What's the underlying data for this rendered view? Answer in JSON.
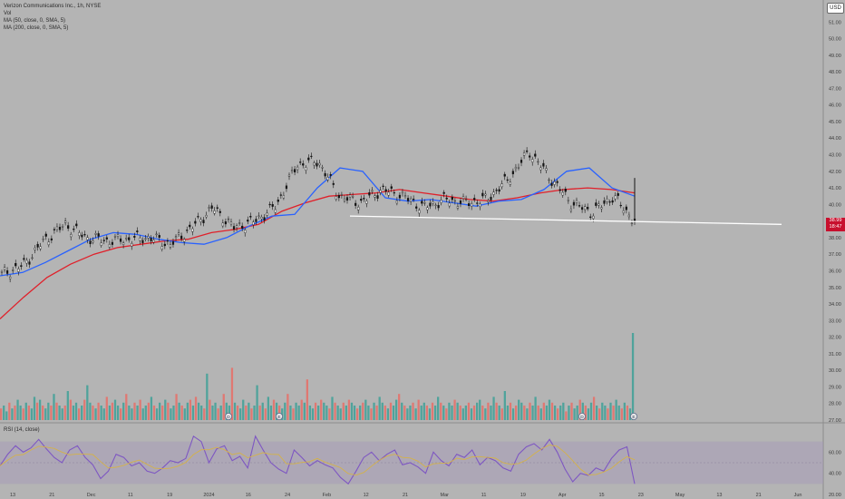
{
  "chart_data": [
    {
      "type": "candlestick",
      "title": "Verizon Communications Inc., 1h, NYSE",
      "currency": "USD",
      "last_price": "38.99",
      "countdown": "18:47",
      "ylim": [
        27,
        52
      ],
      "y_ticks": [
        "51.00",
        "50.00",
        "49.00",
        "48.00",
        "47.00",
        "46.00",
        "45.00",
        "44.00",
        "43.00",
        "42.00",
        "41.00",
        "40.00",
        "39.00",
        "38.00",
        "37.00",
        "36.00",
        "35.00",
        "34.00",
        "33.00",
        "32.00",
        "31.00",
        "30.00",
        "29.00",
        "28.00",
        "27.00"
      ],
      "x_ticks": [
        "13",
        "21",
        "Dec",
        "11",
        "19",
        "2024",
        "16",
        "24",
        "Feb",
        "12",
        "21",
        "Mar",
        "11",
        "19",
        "Apr",
        "15",
        "23",
        "May",
        "13",
        "21",
        "Jun"
      ],
      "series": [
        {
          "name": "MA (50, close, 0, SMA, 5)",
          "color": "#2962ff",
          "values": [
            35.7,
            35.9,
            36.5,
            37.2,
            37.9,
            38.3,
            38.2,
            37.9,
            37.7,
            37.6,
            38.0,
            38.7,
            39.3,
            39.4,
            41.0,
            42.2,
            42.0,
            40.4,
            40.2,
            40.3,
            40.1,
            39.9,
            40.2,
            40.3,
            40.9,
            42.0,
            42.2,
            41.0,
            40.5
          ]
        },
        {
          "name": "MA (200, close, 0, SMA, 5)",
          "color": "#e0202a",
          "values": [
            33.1,
            34.4,
            35.6,
            36.4,
            37.0,
            37.4,
            37.6,
            37.8,
            37.9,
            38.3,
            38.5,
            38.8,
            39.6,
            40.1,
            40.5,
            40.6,
            40.7,
            40.9,
            40.7,
            40.5,
            40.3,
            40.2,
            40.4,
            40.7,
            40.9,
            41.0,
            40.9,
            40.7
          ]
        },
        {
          "name": "Price close",
          "color": "#141414",
          "values": [
            35.8,
            36.3,
            37.8,
            38.8,
            38.0,
            37.8,
            37.9,
            38.0,
            37.6,
            38.6,
            39.8,
            38.6,
            39.0,
            39.9,
            42.4,
            42.6,
            40.5,
            40.1,
            40.9,
            40.5,
            39.8,
            40.3,
            40.1,
            40.3,
            41.5,
            43.2,
            41.6,
            40.1,
            39.5,
            40.5,
            38.99
          ]
        }
      ],
      "trendline": {
        "from": [
          10.5,
          39.3
        ],
        "to": [
          23.6,
          38.8
        ]
      }
    },
    {
      "type": "bar",
      "title": "Vol",
      "colors": {
        "up": "#4fa39b",
        "down": "#e07872"
      },
      "values": [
        4,
        5,
        3,
        6,
        4,
        5,
        7,
        5,
        4,
        6,
        5,
        4,
        8,
        6,
        7,
        5,
        4,
        6,
        5,
        9,
        6,
        5,
        4,
        5,
        10,
        7,
        5,
        6,
        4,
        5,
        7,
        12,
        6,
        5,
        4,
        6,
        5,
        4,
        8,
        5,
        6,
        7,
        5,
        4,
        6,
        9,
        5,
        4,
        6,
        5,
        7,
        4,
        5,
        6,
        8,
        5,
        4,
        6,
        5,
        7,
        6,
        4,
        5,
        9,
        6,
        5,
        4,
        6,
        7,
        5,
        8,
        6,
        5,
        4,
        16,
        7,
        5,
        6,
        4,
        5,
        9,
        6,
        5,
        18,
        6,
        5,
        4,
        7,
        5,
        6,
        4,
        5,
        12,
        5,
        6,
        4,
        8,
        5,
        7,
        6,
        5,
        4,
        6,
        9,
        5,
        4,
        6,
        5,
        7,
        6,
        14,
        5,
        4,
        6,
        5,
        7,
        6,
        5,
        4,
        8,
        6,
        5,
        4,
        6,
        5,
        7,
        6,
        5,
        4,
        5,
        6,
        7,
        5,
        4,
        6,
        5,
        8,
        6,
        5,
        4,
        6,
        5,
        7,
        9,
        6,
        5,
        4,
        5,
        6,
        4,
        7,
        5,
        6,
        5,
        4,
        6,
        5,
        8,
        6,
        5,
        4,
        6,
        5,
        7,
        6,
        5,
        4,
        5,
        6,
        4,
        5,
        6,
        7,
        5,
        4,
        6,
        5,
        8,
        6,
        5,
        4,
        10,
        5,
        6,
        4,
        5,
        7,
        6,
        5,
        4,
        6,
        5,
        8,
        5,
        4,
        6,
        5,
        7,
        6,
        5,
        4,
        5,
        6,
        3,
        5,
        6,
        4,
        5,
        7,
        6,
        5,
        4,
        6,
        8,
        5,
        4,
        6,
        5,
        4,
        6,
        5,
        7,
        5,
        4,
        6,
        5,
        4,
        30
      ]
    },
    {
      "type": "line",
      "title": "RSI (14, close)",
      "ylim": [
        20,
        80
      ],
      "y_ticks": [
        "60.00",
        "40.00",
        "20.00"
      ],
      "band": [
        30,
        70
      ],
      "values": [
        47,
        58,
        66,
        60,
        64,
        72,
        63,
        55,
        50,
        62,
        66,
        55,
        48,
        35,
        42,
        58,
        55,
        47,
        50,
        42,
        40,
        45,
        52,
        50,
        54,
        75,
        70,
        50,
        63,
        66,
        52,
        56,
        45,
        75,
        62,
        50,
        44,
        40,
        62,
        55,
        47,
        52,
        48,
        45,
        36,
        30,
        42,
        55,
        60,
        52,
        58,
        62,
        48,
        50,
        46,
        40,
        60,
        52,
        47,
        58,
        55,
        62,
        48,
        55,
        52,
        45,
        42,
        58,
        65,
        68,
        62,
        72,
        60,
        44,
        32,
        40,
        38,
        45,
        42,
        54,
        62,
        65,
        30
      ]
    }
  ],
  "legend": {
    "title": "Verizon Communications Inc., 1h, NYSE",
    "vol": "Vol",
    "ma50": "MA (50, close, 0, SMA, 5)",
    "ma200": "MA (200, close, 0, SMA, 5)",
    "rsi": "RSI (14, close)"
  },
  "price_scale": {
    "currency": "USD",
    "last_price": "38.99",
    "countdown": "18:47"
  },
  "event_markers": [
    "D",
    "E",
    "D",
    "E"
  ]
}
